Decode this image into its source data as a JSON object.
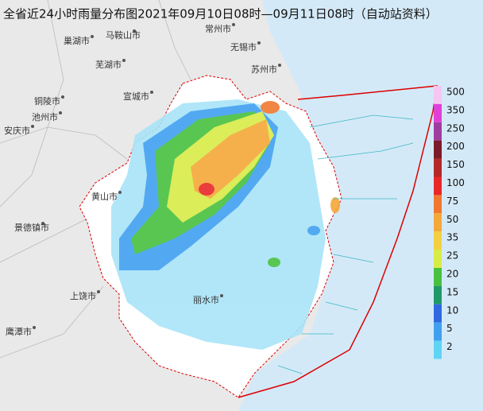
{
  "title": "全省近24小时雨量分布图2021年09月10日08时—09月11日08时（自动站资料）",
  "cities": [
    {
      "name": "巢湖市"
    },
    {
      "name": "马鞍山市"
    },
    {
      "name": "常州市"
    },
    {
      "name": "无锡市"
    },
    {
      "name": "芜湖市"
    },
    {
      "name": "苏州市"
    },
    {
      "name": "铜陵市"
    },
    {
      "name": "宣城市"
    },
    {
      "name": "池州市"
    },
    {
      "name": "安庆市"
    },
    {
      "name": "黄山市"
    },
    {
      "name": "景德镇市"
    },
    {
      "name": "上饶市"
    },
    {
      "name": "鹰潭市"
    },
    {
      "name": "丽水市"
    }
  ],
  "legend": [
    {
      "label": "500",
      "color": "#f4c6f0"
    },
    {
      "label": "350",
      "color": "#e040d8"
    },
    {
      "label": "250",
      "color": "#a03ca0"
    },
    {
      "label": "200",
      "color": "#7a1a2a"
    },
    {
      "label": "150",
      "color": "#b42828"
    },
    {
      "label": "100",
      "color": "#e82828"
    },
    {
      "label": "75",
      "color": "#f07830"
    },
    {
      "label": "50",
      "color": "#f4a838"
    },
    {
      "label": "35",
      "color": "#f4d040"
    },
    {
      "label": "25",
      "color": "#d8ec48"
    },
    {
      "label": "20",
      "color": "#48c040"
    },
    {
      "label": "15",
      "color": "#209868"
    },
    {
      "label": "10",
      "color": "#3068e0"
    },
    {
      "label": "5",
      "color": "#40a0f0"
    },
    {
      "label": "2",
      "color": "#60d4f4"
    }
  ]
}
